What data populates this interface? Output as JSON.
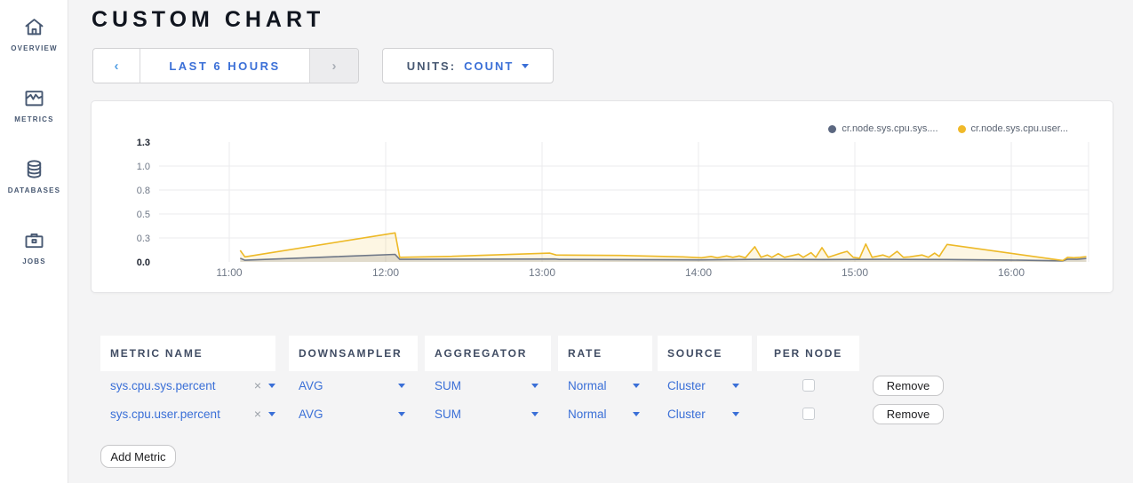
{
  "sidebar": {
    "items": [
      {
        "label": "OVERVIEW",
        "icon": "home-icon"
      },
      {
        "label": "METRICS",
        "icon": "metrics-graph-icon"
      },
      {
        "label": "DATABASES",
        "icon": "database-icon"
      },
      {
        "label": "JOBS",
        "icon": "briefcase-icon"
      }
    ]
  },
  "header": {
    "title": "CUSTOM CHART"
  },
  "toolbar": {
    "time_range": {
      "prev": "‹",
      "label": "LAST 6 HOURS",
      "next": "›"
    },
    "units": {
      "label": "UNITS:",
      "value": "COUNT"
    }
  },
  "chart_data": {
    "type": "line",
    "title": "",
    "xlabel": "",
    "ylabel": "",
    "grid": true,
    "legend_position": "top-right",
    "x_ticks": [
      "11:00",
      "12:00",
      "13:00",
      "14:00",
      "15:00",
      "16:00"
    ],
    "y_ticks": [
      "0.0",
      "0.3",
      "0.5",
      "0.8",
      "1.0",
      "1.3"
    ],
    "ylim": [
      0,
      1.3
    ],
    "xlim_hours": [
      10.55,
      16.55
    ],
    "colors": {
      "axis_text": "#6f7887",
      "axis_text_bold": "#1f2531",
      "gridline": "#ebebed"
    },
    "series": [
      {
        "name": "cr.node.sys.cpu.sys....",
        "color": "#6e7787",
        "legend_color": "#5b6780",
        "fill": "rgba(110,119,135,0.22)",
        "points": [
          [
            11.07,
            0.04
          ],
          [
            11.1,
            0.018
          ],
          [
            12.06,
            0.082
          ],
          [
            12.09,
            0.028
          ],
          [
            12.5,
            0.03
          ],
          [
            13.08,
            0.032
          ],
          [
            13.11,
            0.027
          ],
          [
            13.6,
            0.025
          ],
          [
            14.0,
            0.022
          ],
          [
            14.4,
            0.028
          ],
          [
            14.8,
            0.026
          ],
          [
            15.2,
            0.028
          ],
          [
            15.59,
            0.026
          ],
          [
            16.0,
            0.02
          ],
          [
            16.33,
            0.012
          ],
          [
            16.36,
            0.03
          ],
          [
            16.42,
            0.028
          ],
          [
            16.48,
            0.038
          ]
        ]
      },
      {
        "name": "cr.node.sys.cpu.user...",
        "color": "#edb927",
        "legend_color": "#f0b929",
        "fill": "rgba(237,185,39,0.13)",
        "points": [
          [
            11.07,
            0.125
          ],
          [
            11.1,
            0.055
          ],
          [
            12.06,
            0.315
          ],
          [
            12.09,
            0.05
          ],
          [
            12.4,
            0.06
          ],
          [
            13.05,
            0.095
          ],
          [
            13.09,
            0.075
          ],
          [
            13.5,
            0.07
          ],
          [
            13.9,
            0.055
          ],
          [
            14.02,
            0.045
          ],
          [
            14.08,
            0.06
          ],
          [
            14.12,
            0.045
          ],
          [
            14.18,
            0.065
          ],
          [
            14.22,
            0.05
          ],
          [
            14.26,
            0.065
          ],
          [
            14.3,
            0.045
          ],
          [
            14.36,
            0.165
          ],
          [
            14.4,
            0.05
          ],
          [
            14.44,
            0.075
          ],
          [
            14.47,
            0.05
          ],
          [
            14.51,
            0.09
          ],
          [
            14.55,
            0.05
          ],
          [
            14.64,
            0.085
          ],
          [
            14.67,
            0.05
          ],
          [
            14.72,
            0.1
          ],
          [
            14.75,
            0.05
          ],
          [
            14.79,
            0.155
          ],
          [
            14.83,
            0.05
          ],
          [
            14.91,
            0.095
          ],
          [
            14.95,
            0.115
          ],
          [
            14.99,
            0.05
          ],
          [
            15.03,
            0.04
          ],
          [
            15.07,
            0.195
          ],
          [
            15.11,
            0.05
          ],
          [
            15.18,
            0.075
          ],
          [
            15.22,
            0.05
          ],
          [
            15.27,
            0.115
          ],
          [
            15.31,
            0.05
          ],
          [
            15.35,
            0.055
          ],
          [
            15.43,
            0.075
          ],
          [
            15.47,
            0.05
          ],
          [
            15.51,
            0.095
          ],
          [
            15.54,
            0.06
          ],
          [
            15.56,
            0.115
          ],
          [
            15.59,
            0.19
          ],
          [
            16.33,
            0.015
          ],
          [
            16.36,
            0.05
          ],
          [
            16.4,
            0.045
          ],
          [
            16.44,
            0.05
          ],
          [
            16.48,
            0.058
          ]
        ]
      }
    ]
  },
  "metrics_table": {
    "columns": [
      "METRIC NAME",
      "DOWNSAMPLER",
      "AGGREGATOR",
      "RATE",
      "SOURCE",
      "PER NODE"
    ],
    "rows": [
      {
        "metric": "sys.cpu.sys.percent",
        "remove_symbol": "×",
        "downsampler": "AVG",
        "aggregator": "SUM",
        "rate": "Normal",
        "source": "Cluster",
        "per_node": false,
        "remove_label": "Remove"
      },
      {
        "metric": "sys.cpu.user.percent",
        "remove_symbol": "×",
        "downsampler": "AVG",
        "aggregator": "SUM",
        "rate": "Normal",
        "source": "Cluster",
        "per_node": false,
        "remove_label": "Remove"
      }
    ],
    "add_button": "Add Metric"
  }
}
